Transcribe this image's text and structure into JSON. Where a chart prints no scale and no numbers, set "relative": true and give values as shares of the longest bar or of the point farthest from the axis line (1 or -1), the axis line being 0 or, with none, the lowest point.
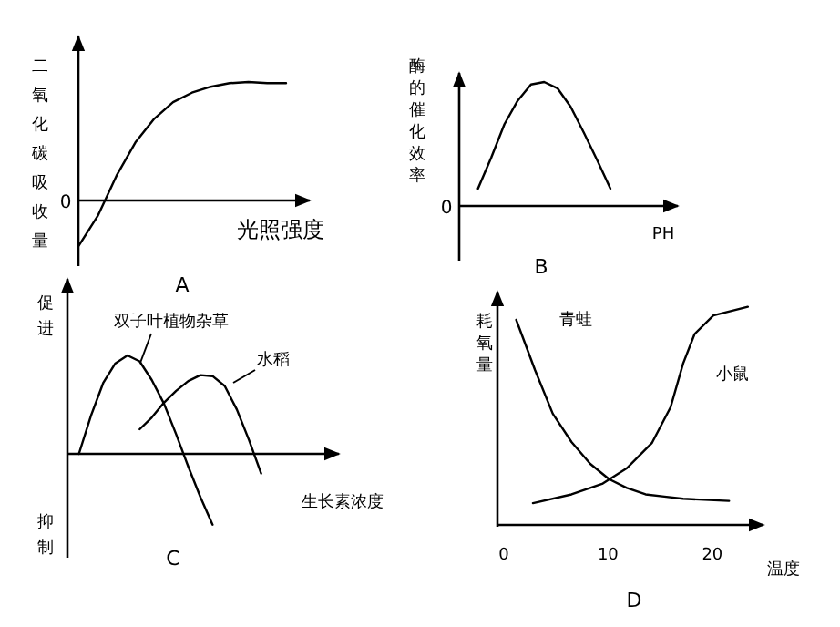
{
  "chart_data": [
    {
      "type": "line",
      "relative": true,
      "title": "A",
      "xlabel": "光照强度",
      "ylabel": "二氧化碳吸收量",
      "legend": false,
      "categories": [
        null,
        null,
        null,
        null,
        null,
        null,
        null,
        null,
        null,
        null,
        null,
        null
      ],
      "annotations": [
        "0"
      ],
      "series": [
        {
          "color": "#000000",
          "values": [
            -0.38,
            -0.13,
            0.21,
            0.49,
            0.69,
            0.83,
            0.91,
            0.96,
            0.99,
            1,
            0.99,
            0.99
          ]
        }
      ]
    },
    {
      "type": "line",
      "relative": true,
      "title": "B",
      "xlabel": "PH",
      "ylabel": "酶的催化效率",
      "legend": false,
      "categories": [
        null,
        null,
        null,
        null,
        null,
        null,
        null,
        null,
        null,
        null,
        null
      ],
      "annotations": [
        "0"
      ],
      "series": [
        {
          "color": "#000000",
          "values": [
            0.14,
            0.39,
            0.66,
            0.85,
            0.98,
            1,
            0.95,
            0.8,
            0.59,
            0.37,
            0.14
          ]
        }
      ]
    },
    {
      "type": "line",
      "relative": true,
      "title": "C",
      "xlabel": "生长素浓度",
      "legend": false,
      "categories": [
        null,
        null,
        null,
        null,
        null,
        null,
        null,
        null,
        null,
        null,
        null,
        null,
        null,
        null,
        null,
        null,
        null
      ],
      "annotations": [
        "促进",
        "抑制"
      ],
      "series": [
        {
          "name": "双子叶植物杂草",
          "color": "#000000",
          "values": [
            0,
            0.39,
            0.72,
            0.92,
            1,
            0.94,
            0.75,
            0.51,
            0.2,
            -0.13,
            -0.44,
            -0.72,
            null,
            null,
            null,
            null,
            null
          ]
        },
        {
          "name": "水稻",
          "color": "#000000",
          "values": [
            null,
            null,
            null,
            null,
            null,
            0.25,
            0.37,
            0.52,
            0.64,
            0.74,
            0.8,
            0.79,
            0.69,
            0.45,
            0.14,
            -0.2,
            null
          ]
        }
      ]
    },
    {
      "type": "line",
      "relative": true,
      "title": "D",
      "xlabel": "温度",
      "ylabel": "耗氧量",
      "legend": false,
      "xlim": [
        -0.6,
        24.9
      ],
      "xticks": [
        0,
        10,
        20
      ],
      "series": [
        {
          "name": "青蛙",
          "color": "#000000",
          "x": [
            1.2,
            3.0,
            4.7,
            6.5,
            8.3,
            10.1,
            11.8,
            13.6,
            15.4,
            17.2,
            21.6
          ],
          "values": [
            0.94,
            0.71,
            0.51,
            0.38,
            0.28,
            0.21,
            0.17,
            0.14,
            0.13,
            0.12,
            0.11
          ]
        },
        {
          "name": "小鼠",
          "color": "#000000",
          "x": [
            2.8,
            6.5,
            9.5,
            11.8,
            14.2,
            16.0,
            17.2,
            18.3,
            20.1,
            23.4
          ],
          "values": [
            0.1,
            0.14,
            0.19,
            0.26,
            0.375,
            0.54,
            0.74,
            0.875,
            0.96,
            1
          ]
        }
      ]
    }
  ]
}
